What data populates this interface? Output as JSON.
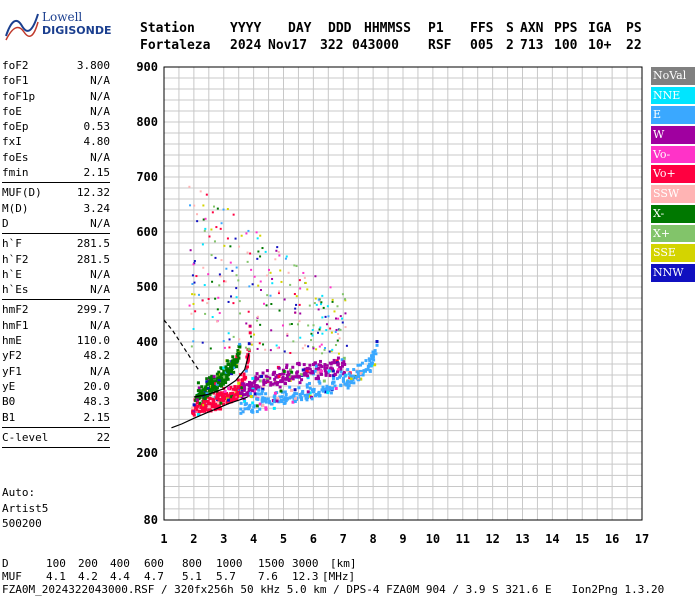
{
  "logo": {
    "line1": "Lowell",
    "line2": "DIGISONDE"
  },
  "header": {
    "labels": [
      "Station",
      "YYYY",
      "DAY",
      "DDD",
      "HHMMSS",
      "P1",
      "FFS",
      "S",
      "AXN",
      "PPS",
      "IGA",
      "PS"
    ],
    "values": [
      "Fortaleza",
      "2024",
      "Nov17",
      "322",
      "043000",
      "RSF",
      "005",
      "2",
      "713",
      "100",
      "10+",
      "22"
    ]
  },
  "params": {
    "group1": [
      {
        "label": "foF2",
        "value": "3.800"
      },
      {
        "label": "foF1",
        "value": "N/A"
      },
      {
        "label": "foF1p",
        "value": "N/A"
      },
      {
        "label": "foE",
        "value": "N/A"
      },
      {
        "label": "foEp",
        "value": "0.53"
      },
      {
        "label": "fxI",
        "value": "4.80"
      },
      {
        "label": "foEs",
        "value": "N/A"
      },
      {
        "label": "fmin",
        "value": "2.15"
      }
    ],
    "group2": [
      {
        "label": "MUF(D)",
        "value": "12.32"
      },
      {
        "label": "M(D)",
        "value": "3.24"
      },
      {
        "label": "D",
        "value": "N/A"
      }
    ],
    "group3": [
      {
        "label": "h`F",
        "value": "281.5"
      },
      {
        "label": "h`F2",
        "value": "281.5"
      },
      {
        "label": "h`E",
        "value": "N/A"
      },
      {
        "label": "h`Es",
        "value": "N/A"
      }
    ],
    "group4": [
      {
        "label": "hmF2",
        "value": "299.7"
      },
      {
        "label": "hmF1",
        "value": "N/A"
      },
      {
        "label": "hmE",
        "value": "110.0"
      },
      {
        "label": "yF2",
        "value": "48.2"
      },
      {
        "label": "yF1",
        "value": "N/A"
      },
      {
        "label": "yE",
        "value": "20.0"
      },
      {
        "label": "B0",
        "value": "48.3"
      },
      {
        "label": "B1",
        "value": "2.15"
      }
    ],
    "group5": [
      {
        "label": "C-level",
        "value": "22"
      }
    ]
  },
  "auto": {
    "line1": "Auto:",
    "line2": "Artist5",
    "line3": "500200"
  },
  "legend": [
    {
      "label": "NoVal",
      "color": "#808080"
    },
    {
      "label": "NNE",
      "color": "#00e5ff"
    },
    {
      "label": "E",
      "color": "#3aa8ff"
    },
    {
      "label": "W",
      "color": "#a000a0"
    },
    {
      "label": "Vo-",
      "color": "#ff33c8"
    },
    {
      "label": "Vo+",
      "color": "#ff0040"
    },
    {
      "label": "SSW",
      "color": "#ffb4b4"
    },
    {
      "label": "X-",
      "color": "#007800"
    },
    {
      "label": "X+",
      "color": "#82c46a"
    },
    {
      "label": "SSE",
      "color": "#d4d400"
    },
    {
      "label": "NNW",
      "color": "#1010c0"
    }
  ],
  "footer": {
    "d_label": "D",
    "d_values": [
      "100",
      "200",
      "400",
      "600",
      "800",
      "1000",
      "1500",
      "3000"
    ],
    "d_unit": "[km]",
    "muf_label": "MUF",
    "muf_values": [
      "4.1",
      "4.2",
      "4.4",
      "4.7",
      "5.1",
      "5.7",
      "7.6",
      "12.3"
    ],
    "muf_unit": "[MHz]",
    "info": "FZA0M_2024322043000.RSF / 320fx256h 50 kHz 5.0 km / DPS-4 FZA0M 904 / 3.9 S 321.6 E   Ion2Png 1.3.20"
  },
  "chart_data": {
    "type": "scatter",
    "xlim": [
      1,
      17
    ],
    "ylim": [
      80,
      900
    ],
    "xticks": [
      "1",
      "2",
      "3",
      "4",
      "5",
      "6",
      "7",
      "8",
      "9",
      "10",
      "11",
      "12",
      "13",
      "14",
      "15",
      "16",
      "17"
    ],
    "yticks": [
      "80",
      "200",
      "300",
      "400",
      "500",
      "600",
      "700",
      "800",
      "900"
    ],
    "ytick_values": [
      80,
      200,
      300,
      400,
      500,
      600,
      700,
      800,
      900
    ],
    "xlabel": "",
    "ylabel": "",
    "traces": [
      {
        "name": "O-trace",
        "color": "#ff0040",
        "points": [
          [
            1.9,
            275
          ],
          [
            2.2,
            280
          ],
          [
            2.5,
            285
          ],
          [
            2.8,
            290
          ],
          [
            3.0,
            295
          ],
          [
            3.2,
            300
          ],
          [
            3.4,
            310
          ],
          [
            3.6,
            325
          ],
          [
            3.7,
            345
          ],
          [
            3.8,
            380
          ],
          [
            3.85,
            430
          ]
        ]
      },
      {
        "name": "O-bottom",
        "color": "#a000a0",
        "points": [
          [
            3.5,
            305
          ],
          [
            4.0,
            320
          ],
          [
            4.5,
            330
          ],
          [
            5.0,
            335
          ],
          [
            5.5,
            340
          ],
          [
            6.0,
            345
          ],
          [
            6.5,
            350
          ],
          [
            7.0,
            355
          ]
        ]
      },
      {
        "name": "X-trace",
        "color": "#3aa8ff",
        "points": [
          [
            3.5,
            275
          ],
          [
            4.0,
            285
          ],
          [
            4.5,
            290
          ],
          [
            5.0,
            295
          ],
          [
            5.5,
            300
          ],
          [
            6.0,
            308
          ],
          [
            6.5,
            315
          ],
          [
            7.0,
            325
          ],
          [
            7.5,
            340
          ],
          [
            7.8,
            355
          ],
          [
            8.0,
            370
          ],
          [
            8.1,
            400
          ]
        ]
      },
      {
        "name": "X-green",
        "color": "#007800",
        "points": [
          [
            2.0,
            300
          ],
          [
            2.3,
            310
          ],
          [
            2.6,
            320
          ],
          [
            2.9,
            330
          ],
          [
            3.1,
            345
          ],
          [
            3.3,
            360
          ],
          [
            3.5,
            380
          ]
        ]
      }
    ],
    "profile": {
      "color": "#000000",
      "lower": [
        [
          1.25,
          245
        ],
        [
          1.6,
          252
        ],
        [
          2.0,
          262
        ],
        [
          2.4,
          271
        ],
        [
          2.8,
          280
        ],
        [
          3.2,
          289
        ],
        [
          3.6,
          296
        ],
        [
          3.8,
          300
        ]
      ],
      "dashed": [
        [
          1.0,
          440
        ],
        [
          1.3,
          420
        ],
        [
          1.6,
          395
        ],
        [
          1.9,
          370
        ],
        [
          2.15,
          350
        ]
      ],
      "upper": [
        [
          2.0,
          300
        ],
        [
          2.5,
          305
        ],
        [
          3.0,
          315
        ],
        [
          3.4,
          330
        ],
        [
          3.7,
          350
        ],
        [
          3.85,
          380
        ]
      ]
    }
  }
}
